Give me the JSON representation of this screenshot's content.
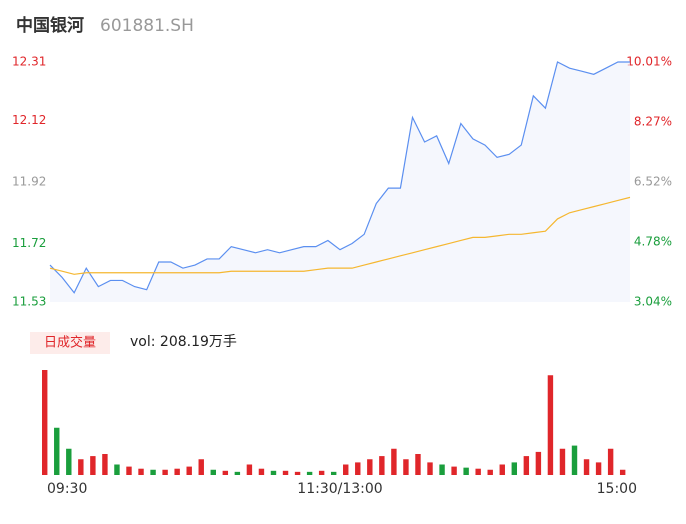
{
  "header": {
    "name": "中国银河",
    "code": "601881.SH"
  },
  "chart_data": [
    {
      "type": "line",
      "categories": [
        "09:30",
        null,
        null,
        null,
        null,
        null,
        null,
        null,
        null,
        null,
        null,
        null,
        null,
        null,
        null,
        null,
        null,
        null,
        null,
        null,
        null,
        null,
        null,
        null,
        "11:30/13:00",
        null,
        null,
        null,
        null,
        null,
        null,
        null,
        null,
        null,
        null,
        null,
        null,
        null,
        null,
        null,
        null,
        null,
        null,
        null,
        null,
        null,
        null,
        null,
        "15:00"
      ],
      "series": [
        {
          "color": "#5b8ff0",
          "values": [
            11.65,
            11.61,
            11.56,
            11.64,
            11.58,
            11.6,
            11.6,
            11.58,
            11.57,
            11.66,
            11.66,
            11.64,
            11.65,
            11.67,
            11.67,
            11.71,
            11.7,
            11.69,
            11.7,
            11.69,
            11.7,
            11.71,
            11.71,
            11.73,
            11.7,
            11.72,
            11.75,
            11.85,
            11.9,
            11.9,
            12.13,
            12.05,
            12.07,
            11.98,
            12.11,
            12.06,
            12.04,
            12.0,
            12.01,
            12.04,
            12.2,
            12.16,
            12.31,
            12.29,
            12.28,
            12.27,
            12.29,
            12.31,
            12.31
          ]
        },
        {
          "color": "#f5b730",
          "values": [
            11.64,
            11.63,
            11.62,
            11.625,
            11.625,
            11.625,
            11.625,
            11.625,
            11.625,
            11.625,
            11.625,
            11.625,
            11.625,
            11.625,
            11.625,
            11.63,
            11.63,
            11.63,
            11.63,
            11.63,
            11.63,
            11.63,
            11.635,
            11.64,
            11.64,
            11.64,
            11.65,
            11.66,
            11.67,
            11.68,
            11.69,
            11.7,
            11.71,
            11.72,
            11.73,
            11.74,
            11.74,
            11.745,
            11.75,
            11.75,
            11.755,
            11.76,
            11.8,
            11.82,
            11.83,
            11.84,
            11.85,
            11.86,
            11.87
          ]
        }
      ],
      "ylim": [
        11.53,
        12.31
      ],
      "yticks": [
        11.53,
        11.72,
        11.92,
        12.12,
        12.31
      ],
      "ytick_colors": [
        "#1a9e3c",
        "#1a9e3c",
        "#999999",
        "#e0262a",
        "#e0262a"
      ],
      "y2lim": [
        3.04,
        10.01
      ],
      "y2ticks": [
        {
          "value": 3.04,
          "label": "3.04%"
        },
        {
          "value": 4.78,
          "label": "4.78%"
        },
        {
          "value": 6.52,
          "label": "6.52%"
        },
        {
          "value": 8.27,
          "label": "8.27%"
        },
        {
          "value": 10.01,
          "label": "10.01%"
        }
      ]
    },
    {
      "type": "bar",
      "title": "日成交量",
      "subtitle": "vol: 208.19万手",
      "values": [
        100,
        45,
        25,
        15,
        18,
        20,
        10,
        8,
        6,
        5,
        5,
        6,
        8,
        15,
        5,
        4,
        3,
        10,
        6,
        4,
        4,
        3,
        3,
        4,
        3,
        10,
        12,
        15,
        18,
        25,
        15,
        20,
        12,
        10,
        8,
        7,
        6,
        5,
        10,
        12,
        18,
        22,
        95,
        25,
        28,
        15,
        12,
        25,
        5
      ],
      "colors": [
        "#e0262a",
        "#1a9e3c",
        "#1a9e3c",
        "#e0262a",
        "#e0262a",
        "#e0262a",
        "#1a9e3c",
        "#e0262a",
        "#e0262a",
        "#1a9e3c",
        "#e0262a",
        "#e0262a",
        "#e0262a",
        "#e0262a",
        "#1a9e3c",
        "#e0262a",
        "#1a9e3c",
        "#e0262a",
        "#e0262a",
        "#1a9e3c",
        "#e0262a",
        "#e0262a",
        "#1a9e3c",
        "#e0262a",
        "#1a9e3c",
        "#e0262a",
        "#e0262a",
        "#e0262a",
        "#e0262a",
        "#e0262a",
        "#e0262a",
        "#e0262a",
        "#e0262a",
        "#1a9e3c",
        "#e0262a",
        "#1a9e3c",
        "#e0262a",
        "#e0262a",
        "#e0262a",
        "#1a9e3c",
        "#e0262a",
        "#e0262a",
        "#e0262a",
        "#e0262a",
        "#1a9e3c",
        "#e0262a",
        "#e0262a",
        "#e0262a",
        "#e0262a"
      ],
      "ylim": [
        0,
        100
      ]
    }
  ]
}
